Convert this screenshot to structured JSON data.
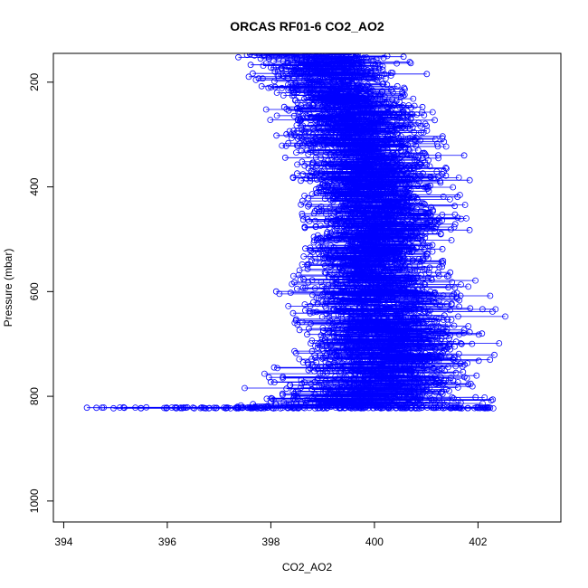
{
  "chart_data": {
    "type": "scatter",
    "title": "ORCAS RF01-6 CO2_AO2",
    "xlabel": "CO2_AO2",
    "ylabel": "Pressure (mbar)",
    "xlim": [
      393.8,
      403.6
    ],
    "ylim": [
      1040,
      145
    ],
    "y_reversed": true,
    "grid": false,
    "legend": "none",
    "marker": "open-circle",
    "connect_points": true,
    "color": "#0000ff",
    "x_ticks": [
      394,
      396,
      398,
      400,
      402
    ],
    "x_tick_labels": [
      "394",
      "396",
      "398",
      "400",
      "402"
    ],
    "y_ticks": [
      200,
      400,
      600,
      800,
      1000
    ],
    "y_tick_labels": [
      "200",
      "400",
      "600",
      "800",
      "1000"
    ],
    "profile": [
      {
        "p": 160,
        "x_min": 397.2,
        "x_max": 401.5,
        "x_center": 399.0
      },
      {
        "p": 200,
        "x_min": 397.6,
        "x_max": 401.5,
        "x_center": 399.2
      },
      {
        "p": 250,
        "x_min": 397.9,
        "x_max": 401.8,
        "x_center": 399.5
      },
      {
        "p": 300,
        "x_min": 398.1,
        "x_max": 402.2,
        "x_center": 399.7
      },
      {
        "p": 350,
        "x_min": 398.3,
        "x_max": 402.3,
        "x_center": 399.9
      },
      {
        "p": 400,
        "x_min": 398.5,
        "x_max": 402.4,
        "x_center": 400.0
      },
      {
        "p": 450,
        "x_min": 398.6,
        "x_max": 403.0,
        "x_center": 400.1
      },
      {
        "p": 500,
        "x_min": 398.7,
        "x_max": 402.5,
        "x_center": 400.0
      },
      {
        "p": 550,
        "x_min": 398.6,
        "x_max": 402.5,
        "x_center": 400.0
      },
      {
        "p": 600,
        "x_min": 398.1,
        "x_max": 403.0,
        "x_center": 400.0
      },
      {
        "p": 650,
        "x_min": 398.5,
        "x_max": 403.3,
        "x_center": 400.2
      },
      {
        "p": 700,
        "x_min": 398.3,
        "x_max": 403.2,
        "x_center": 400.3
      },
      {
        "p": 750,
        "x_min": 397.3,
        "x_max": 403.0,
        "x_center": 400.2
      },
      {
        "p": 800,
        "x_min": 396.3,
        "x_max": 402.9,
        "x_center": 400.0
      },
      {
        "p": 822,
        "x_min": 394.2,
        "x_max": 402.3,
        "x_center": 399.0
      }
    ],
    "surface_level": {
      "p": 822,
      "x_min": 394.2,
      "x_max": 402.3
    }
  }
}
